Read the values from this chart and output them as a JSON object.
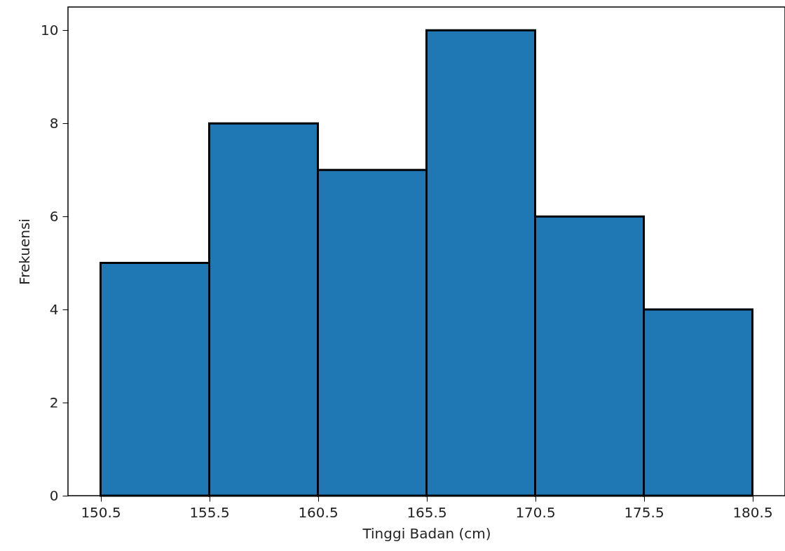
{
  "chart_data": {
    "type": "histogram",
    "xlabel": "Tinggi Badan (cm)",
    "ylabel": "Frekuensi",
    "bins": [
      150.5,
      155.5,
      160.5,
      165.5,
      170.5,
      175.5,
      180.5
    ],
    "values": [
      5,
      8,
      7,
      10,
      6,
      4
    ],
    "color": "#1f77b4",
    "xlim": [
      149,
      182
    ],
    "xticks": [
      150.5,
      155.5,
      160.5,
      165.5,
      170.5,
      175.5,
      180.5
    ],
    "ylim": [
      0,
      10.5
    ],
    "yticks": [
      0,
      2,
      4,
      6,
      8,
      10
    ],
    "grid": false
  }
}
